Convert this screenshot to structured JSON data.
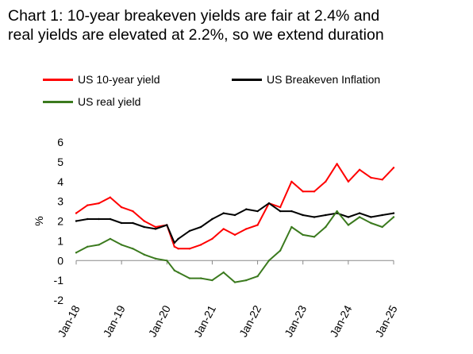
{
  "title": {
    "line1": "Chart 1: 10-year breakeven yields are fair at 2.4% and",
    "line2": "real yields are elevated at 2.2%, so we extend duration"
  },
  "colors": {
    "us10y": "#ff0000",
    "breakeven": "#000000",
    "real": "#3b7a1e"
  },
  "chart_data": {
    "type": "line",
    "title": "Chart 1: 10-year breakeven yields are fair at 2.4% and real yields are elevated at 2.2%, so we extend duration",
    "xlabel": "",
    "ylabel": "%",
    "ylim": [
      -2,
      6
    ],
    "yticks": [
      "-2",
      "-1",
      "0",
      "1",
      "2",
      "3",
      "4",
      "5",
      "6"
    ],
    "xlim": [
      "2018-01",
      "2025-01"
    ],
    "xticks": [
      "Jan-18",
      "Jan-19",
      "Jan-20",
      "Jan-21",
      "Jan-22",
      "Jan-23",
      "Jan-24",
      "Jan-25"
    ],
    "grid": false,
    "legend": "top",
    "x": [
      "2018-01",
      "2018-04",
      "2018-07",
      "2018-10",
      "2019-01",
      "2019-04",
      "2019-07",
      "2019-10",
      "2020-01",
      "2020-03",
      "2020-04",
      "2020-07",
      "2020-10",
      "2021-01",
      "2021-04",
      "2021-07",
      "2021-10",
      "2022-01",
      "2022-04",
      "2022-07",
      "2022-10",
      "2023-01",
      "2023-04",
      "2023-07",
      "2023-10",
      "2024-01",
      "2024-04",
      "2024-07",
      "2024-10",
      "2025-01"
    ],
    "series": [
      {
        "name": "US 10-year yield",
        "values": [
          2.4,
          2.8,
          2.9,
          3.2,
          2.7,
          2.5,
          2.0,
          1.7,
          1.8,
          0.7,
          0.6,
          0.6,
          0.8,
          1.1,
          1.6,
          1.3,
          1.6,
          1.8,
          2.9,
          2.7,
          4.0,
          3.5,
          3.5,
          4.0,
          4.9,
          4.0,
          4.6,
          4.2,
          4.1,
          4.7
        ]
      },
      {
        "name": "US Breakeven Inflation",
        "values": [
          2.0,
          2.1,
          2.1,
          2.1,
          1.9,
          1.9,
          1.7,
          1.6,
          1.8,
          0.9,
          1.1,
          1.5,
          1.7,
          2.1,
          2.4,
          2.3,
          2.6,
          2.5,
          2.9,
          2.5,
          2.5,
          2.3,
          2.2,
          2.3,
          2.4,
          2.2,
          2.4,
          2.2,
          2.3,
          2.4
        ]
      },
      {
        "name": "US real yield",
        "values": [
          0.4,
          0.7,
          0.8,
          1.1,
          0.8,
          0.6,
          0.3,
          0.1,
          0.0,
          -0.5,
          -0.6,
          -0.9,
          -0.9,
          -1.0,
          -0.6,
          -1.1,
          -1.0,
          -0.8,
          0.0,
          0.5,
          1.7,
          1.3,
          1.2,
          1.7,
          2.5,
          1.8,
          2.2,
          1.9,
          1.7,
          2.2
        ]
      }
    ]
  }
}
